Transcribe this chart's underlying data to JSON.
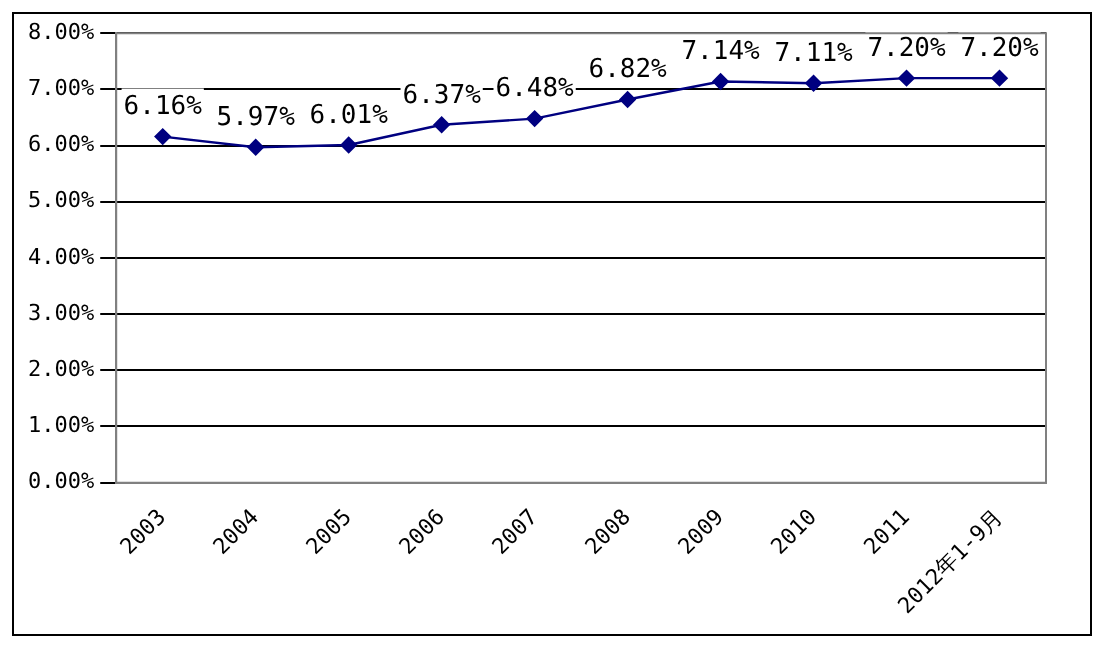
{
  "chart_data": {
    "type": "line",
    "categories": [
      "2003",
      "2004",
      "2005",
      "2006",
      "2007",
      "2008",
      "2009",
      "2010",
      "2011",
      "2012年1-9月"
    ],
    "series": [
      {
        "color": "#000080",
        "values": [
          6.16,
          5.97,
          6.01,
          6.37,
          6.48,
          6.82,
          7.14,
          7.11,
          7.2,
          7.2
        ],
        "value_labels": [
          "6.16%",
          "5.97%",
          "6.01%",
          "6.37%",
          "6.48%",
          "6.82%",
          "7.14%",
          "7.11%",
          "7.20%",
          "7.20%"
        ]
      }
    ],
    "ylim": [
      0,
      8
    ],
    "yticks": [
      {
        "value": 0,
        "label": "0.00%"
      },
      {
        "value": 1,
        "label": "1.00%"
      },
      {
        "value": 2,
        "label": "2.00%"
      },
      {
        "value": 3,
        "label": "3.00%"
      },
      {
        "value": 4,
        "label": "4.00%"
      },
      {
        "value": 5,
        "label": "5.00%"
      },
      {
        "value": 6,
        "label": "6.00%"
      },
      {
        "value": 7,
        "label": "7.00%"
      },
      {
        "value": 8,
        "label": "8.00%"
      }
    ],
    "grid": "y",
    "legend": false,
    "marker": "diamond",
    "line_style": "solid"
  }
}
